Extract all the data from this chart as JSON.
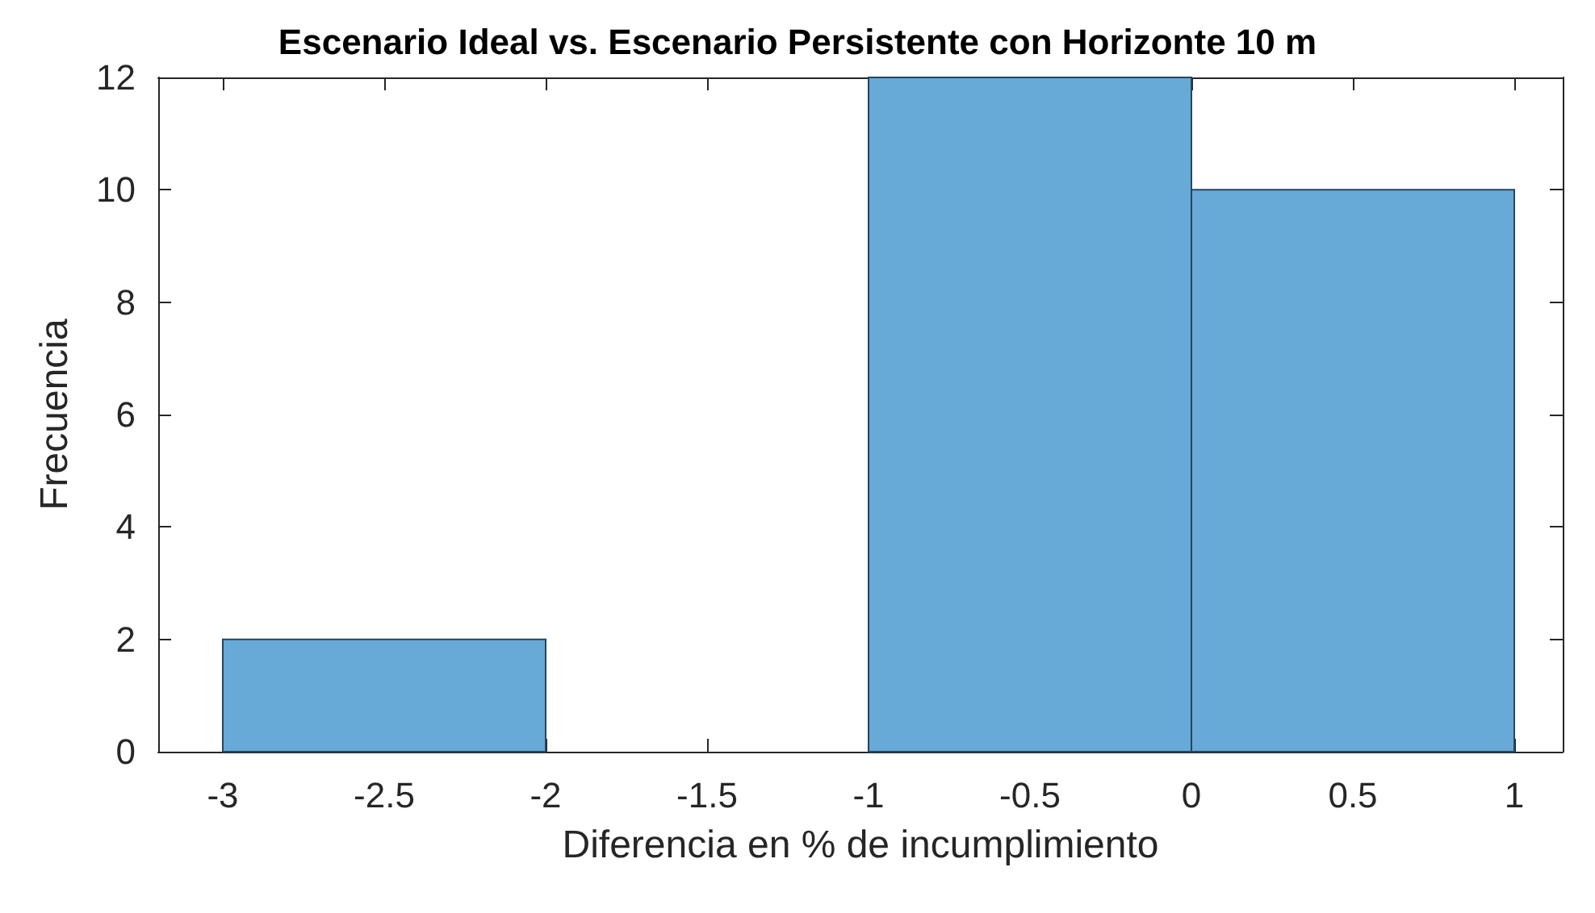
{
  "chart_data": {
    "type": "histogram",
    "title": "Escenario Ideal vs. Escenario Persistente con Horizonte 10 m",
    "xlabel": "Diferencia en % de incumplimiento",
    "ylabel": "Frecuencia",
    "bins": [
      -3,
      -2,
      -1,
      0,
      1
    ],
    "values": [
      2,
      0,
      12,
      10
    ],
    "color": "#67a9d7",
    "xlim": [
      -3.2,
      1.15
    ],
    "xticks": [
      -3,
      -2.5,
      -2,
      -1.5,
      -1,
      -0.5,
      0,
      0.5,
      1
    ],
    "ylim": [
      0,
      12
    ],
    "yticks": [
      0,
      2,
      4,
      6,
      8,
      10,
      12
    ],
    "grid": false
  }
}
